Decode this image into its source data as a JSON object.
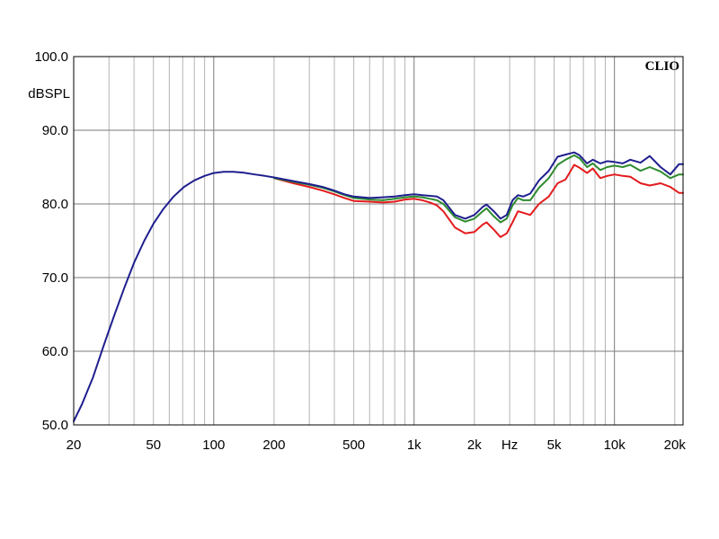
{
  "chart_data": {
    "type": "line",
    "brand": "CLIO",
    "title": "",
    "xlabel": "Hz",
    "ylabel": "dBSPL",
    "x_scale": "log",
    "xlim": [
      20,
      22000
    ],
    "ylim": [
      50,
      100
    ],
    "grid": true,
    "y_ticks": [
      "50.0",
      "60.0",
      "70.0",
      "80.0",
      "90.0",
      "100.0"
    ],
    "x_ticks": [
      {
        "value": 20,
        "label": "20"
      },
      {
        "value": 50,
        "label": "50"
      },
      {
        "value": 100,
        "label": "100"
      },
      {
        "value": 200,
        "label": "200"
      },
      {
        "value": 500,
        "label": "500"
      },
      {
        "value": 1000,
        "label": "1k"
      },
      {
        "value": 2000,
        "label": "2k"
      },
      {
        "value": 5000,
        "label": "5k"
      },
      {
        "value": 10000,
        "label": "10k"
      },
      {
        "value": 20000,
        "label": "20k"
      }
    ],
    "series": [
      {
        "color": "#e41a1c",
        "x": [
          200,
          250,
          300,
          350,
          400,
          450,
          500,
          600,
          700,
          800,
          900,
          1000,
          1100,
          1200,
          1300,
          1400,
          1600,
          1800,
          2000,
          2200,
          2300,
          2500,
          2700,
          2900,
          3100,
          3300,
          3500,
          3800,
          4200,
          4700,
          5200,
          5700,
          6300,
          6700,
          7300,
          7800,
          8500,
          9200,
          10000,
          11000,
          12000,
          13500,
          15000,
          17000,
          19000,
          21000,
          22000
        ],
        "y": [
          83.5,
          82.8,
          82.3,
          81.8,
          81.3,
          80.8,
          80.4,
          80.3,
          80.2,
          80.3,
          80.6,
          80.7,
          80.5,
          80.2,
          79.8,
          79.0,
          76.8,
          76.0,
          76.2,
          77.2,
          77.5,
          76.5,
          75.5,
          76.0,
          77.5,
          79.0,
          78.8,
          78.5,
          80.0,
          81.0,
          82.8,
          83.3,
          85.3,
          84.9,
          84.2,
          84.8,
          83.5,
          83.8,
          84.0,
          83.8,
          83.7,
          82.8,
          82.5,
          82.8,
          82.3,
          81.5,
          81.5
        ]
      },
      {
        "color": "#2e8b2e",
        "x": [
          200,
          250,
          300,
          350,
          400,
          450,
          500,
          600,
          700,
          800,
          900,
          1000,
          1100,
          1200,
          1300,
          1400,
          1600,
          1800,
          2000,
          2200,
          2300,
          2500,
          2700,
          2900,
          3100,
          3300,
          3500,
          3800,
          4200,
          4700,
          5200,
          5700,
          6300,
          6700,
          7300,
          7800,
          8500,
          9200,
          10000,
          11000,
          12000,
          13500,
          15000,
          17000,
          19000,
          21000,
          22000
        ],
        "y": [
          83.5,
          83.0,
          82.6,
          82.2,
          81.7,
          81.2,
          80.8,
          80.6,
          80.5,
          80.7,
          80.9,
          81.0,
          80.9,
          80.7,
          80.5,
          80.0,
          78.2,
          77.6,
          78.0,
          79.0,
          79.4,
          78.3,
          77.5,
          78.0,
          79.8,
          80.8,
          80.5,
          80.5,
          82.2,
          83.5,
          85.3,
          86.0,
          86.6,
          86.2,
          85.0,
          85.5,
          84.6,
          85.0,
          85.2,
          85.0,
          85.3,
          84.5,
          85.0,
          84.4,
          83.5,
          84.0,
          84.0
        ]
      },
      {
        "color": "#1f1f8f",
        "x": [
          20,
          22,
          25,
          28,
          32,
          36,
          40,
          45,
          50,
          56,
          63,
          71,
          80,
          90,
          100,
          112,
          125,
          140,
          160,
          180,
          200,
          250,
          300,
          350,
          400,
          450,
          500,
          600,
          700,
          800,
          900,
          1000,
          1100,
          1200,
          1300,
          1400,
          1600,
          1800,
          2000,
          2200,
          2300,
          2500,
          2700,
          2900,
          3100,
          3300,
          3500,
          3800,
          4200,
          4700,
          5200,
          5700,
          6300,
          6700,
          7300,
          7800,
          8500,
          9200,
          10000,
          11000,
          12000,
          13500,
          15000,
          17000,
          19000,
          21000,
          22000
        ],
        "y": [
          50.5,
          52.8,
          56.5,
          60.5,
          65.0,
          68.8,
          72.0,
          75.0,
          77.3,
          79.3,
          81.0,
          82.3,
          83.2,
          83.8,
          84.2,
          84.35,
          84.35,
          84.25,
          84.0,
          83.8,
          83.6,
          83.1,
          82.7,
          82.3,
          81.8,
          81.3,
          81.0,
          80.8,
          80.9,
          81.0,
          81.2,
          81.3,
          81.2,
          81.1,
          81.0,
          80.5,
          78.5,
          78.0,
          78.5,
          79.6,
          79.9,
          79.0,
          78.0,
          78.5,
          80.5,
          81.2,
          81.0,
          81.4,
          83.2,
          84.5,
          86.4,
          86.7,
          87.0,
          86.6,
          85.5,
          86.0,
          85.5,
          85.8,
          85.7,
          85.5,
          86.0,
          85.6,
          86.5,
          85.0,
          84.0,
          85.4,
          85.4
        ]
      }
    ]
  }
}
